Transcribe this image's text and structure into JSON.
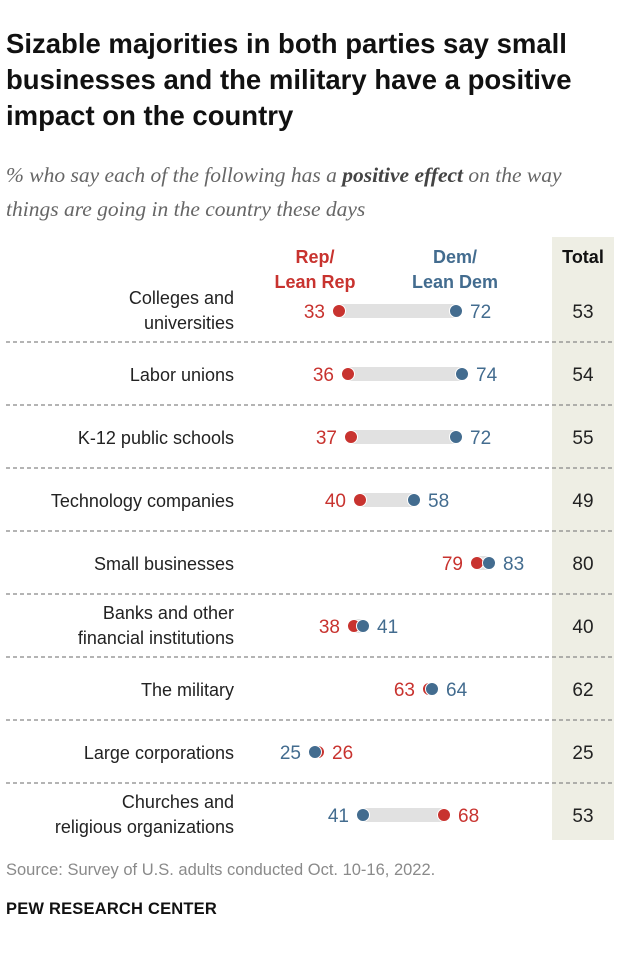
{
  "title": "Sizable majorities in both parties say small businesses and the military have a positive impact on the country",
  "subtitle": {
    "before": "% who say each of the following has a ",
    "emphasis": "positive effect",
    "after": " on the way things are going in the country these days"
  },
  "colors": {
    "rep": "#c8332f",
    "dem": "#436c8f",
    "bar": "#e1e1e1",
    "total_bg": "#eeeee4",
    "divider": "#888888"
  },
  "chart_data": {
    "type": "dot-plot",
    "series": [
      {
        "name": "Rep/ Lean Rep",
        "label_lines": [
          "Rep/",
          "Lean Rep"
        ],
        "key": "rep"
      },
      {
        "name": "Dem/ Lean Dem",
        "label_lines": [
          "Dem/",
          "Lean Dem"
        ],
        "key": "dem"
      }
    ],
    "total_header": "Total",
    "categories": [
      {
        "lines": [
          "Colleges and",
          "universities"
        ],
        "rep": 33,
        "dem": 72,
        "total": 53
      },
      {
        "lines": [
          "Labor unions"
        ],
        "rep": 36,
        "dem": 74,
        "total": 54
      },
      {
        "lines": [
          "K-12 public schools"
        ],
        "rep": 37,
        "dem": 72,
        "total": 55
      },
      {
        "lines": [
          "Technology companies"
        ],
        "rep": 40,
        "dem": 58,
        "total": 49
      },
      {
        "lines": [
          "Small businesses"
        ],
        "rep": 79,
        "dem": 83,
        "total": 80
      },
      {
        "lines": [
          "Banks and other",
          "financial institutions"
        ],
        "rep": 38,
        "dem": 41,
        "total": 40
      },
      {
        "lines": [
          "The military"
        ],
        "rep": 63,
        "dem": 64,
        "total": 62
      },
      {
        "lines": [
          "Large corporations"
        ],
        "rep": 26,
        "dem": 25,
        "total": 25
      },
      {
        "lines": [
          "Churches and",
          "religious organizations"
        ],
        "rep": 68,
        "dem": 41,
        "total": 53
      }
    ]
  },
  "source": "Source: Survey of U.S. adults conducted Oct. 10-16, 2022.",
  "organization": "PEW RESEARCH CENTER"
}
